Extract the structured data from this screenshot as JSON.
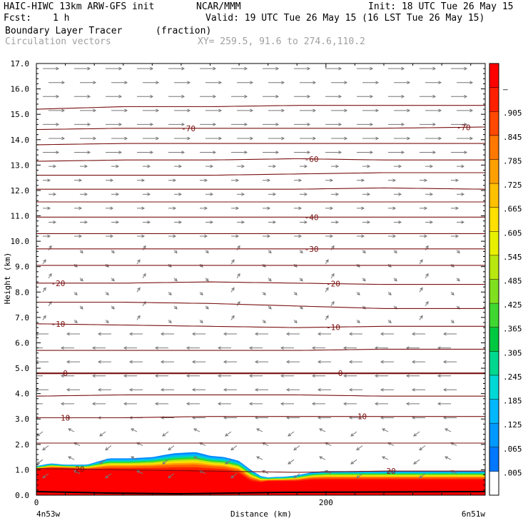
{
  "header": {
    "model": "HAIC-HIWC 13km ARW-GFS init",
    "center": "NCAR/MMM",
    "init": "Init: 18 UTC Tue 26 May 15",
    "fcst_label": "Fcst:",
    "fcst_value": "1 h",
    "valid": "Valid: 19 UTC Tue 26 May 15 (16 LST Tue 26 May 15)",
    "field_name": "Boundary Layer Tracer",
    "field_units": "(fraction)",
    "vector_label": "Circulation vectors",
    "xy_range": "XY= 259.5, 91.6 to 274.6,110.2"
  },
  "chart_data": {
    "type": "heatmap",
    "xlabel": "Distance (km)",
    "ylabel": "Height (km)",
    "xlim": [
      0,
      310
    ],
    "ylim": [
      0,
      17
    ],
    "x_ticks": [
      {
        "value": 0,
        "label": "0"
      },
      {
        "value": 200,
        "label": "200"
      }
    ],
    "x_end_labels": {
      "left": "4n53w",
      "right": "6n51w"
    },
    "y_ticks": [
      "0.0",
      "1.0",
      "2.0",
      "3.0",
      "4.0",
      "5.0",
      "6.0",
      "7.0",
      "8.0",
      "9.0",
      "10.0",
      "11.0",
      "12.0",
      "13.0",
      "14.0",
      "15.0",
      "16.0",
      "17.0"
    ],
    "colorbar": {
      "min": 0.0,
      "max": 1.0,
      "labels": [
        ".005",
        ".065",
        ".125",
        ".185",
        ".245",
        ".305",
        ".365",
        ".425",
        ".485",
        ".545",
        ".605",
        ".665",
        ".725",
        ".785",
        ".845",
        ".905",
        "–"
      ],
      "colors": [
        "#ffffff",
        "#0077ff",
        "#0099ff",
        "#00b8ff",
        "#00d8d8",
        "#00d890",
        "#00c840",
        "#40d830",
        "#80e020",
        "#b8e810",
        "#e8f000",
        "#ffe000",
        "#ffc000",
        "#ffa000",
        "#ff7800",
        "#ff4800",
        "#ff2000",
        "#ff0000"
      ]
    },
    "tracer_profile": {
      "x_km": [
        0,
        10,
        20,
        35,
        50,
        65,
        80,
        95,
        110,
        120,
        130,
        140,
        148,
        155,
        160,
        165,
        170,
        180,
        190,
        200,
        230,
        260,
        290,
        310
      ],
      "top_km": [
        1.15,
        1.25,
        1.2,
        1.2,
        1.45,
        1.45,
        1.5,
        1.65,
        1.7,
        1.55,
        1.5,
        1.35,
        1.0,
        0.75,
        0.7,
        0.72,
        0.72,
        0.78,
        0.9,
        0.95,
        0.95,
        0.95,
        0.95,
        0.95
      ],
      "red_top_km": [
        1.0,
        1.05,
        1.05,
        1.0,
        1.0,
        1.0,
        1.0,
        1.0,
        1.0,
        0.98,
        0.95,
        0.85,
        0.55,
        0.5,
        0.55,
        0.55,
        0.55,
        0.55,
        0.6,
        0.6,
        0.6,
        0.6,
        0.6,
        0.6
      ]
    },
    "isotherms": [
      {
        "label": "-70",
        "y_km": [
          15.2,
          15.3,
          15.3,
          15.35,
          15.35,
          15.35
        ]
      },
      {
        "label": "-70",
        "y_km": [
          14.4,
          14.45,
          14.45,
          14.45,
          14.45,
          14.5
        ],
        "label_x": [
          105,
          295
        ]
      },
      {
        "label": "-70",
        "y_km": [
          13.8,
          13.85,
          13.85,
          13.85,
          13.85,
          13.85
        ]
      },
      {
        "label": "-60",
        "y_km": [
          13.15,
          13.2,
          13.2,
          13.25,
          13.2,
          13.2
        ],
        "label_x": [
          190
        ]
      },
      {
        "label": "-60",
        "y_km": [
          12.6,
          12.6,
          12.6,
          12.65,
          12.7,
          12.7
        ]
      },
      {
        "label": "-50",
        "y_km": [
          12.05,
          12.05,
          12.05,
          12.05,
          12.1,
          12.05
        ]
      },
      {
        "label": "-50",
        "y_km": [
          11.55,
          11.55,
          11.55,
          11.55,
          11.55,
          11.55
        ]
      },
      {
        "label": "-40",
        "y_km": [
          10.95,
          10.95,
          10.95,
          10.95,
          10.95,
          10.95
        ],
        "label_x": [
          190
        ]
      },
      {
        "label": "-40",
        "y_km": [
          10.3,
          10.3,
          10.3,
          10.3,
          10.3,
          10.3
        ]
      },
      {
        "label": "-30",
        "y_km": [
          9.7,
          9.7,
          9.7,
          9.7,
          9.7,
          9.7
        ],
        "label_x": [
          190
        ]
      },
      {
        "label": "-30",
        "y_km": [
          9.05,
          9.05,
          9.05,
          9.05,
          9.05,
          9.05
        ]
      },
      {
        "label": "-20",
        "y_km": [
          8.35,
          8.35,
          8.4,
          8.35,
          8.3,
          8.3
        ],
        "label_x": [
          15,
          205
        ]
      },
      {
        "label": "-20",
        "y_km": [
          7.6,
          7.6,
          7.55,
          7.45,
          7.35,
          7.35
        ]
      },
      {
        "label": "-10",
        "y_km": [
          6.75,
          6.7,
          6.65,
          6.6,
          6.65,
          6.65
        ],
        "label_x": [
          15,
          205
        ]
      },
      {
        "label": "-10",
        "y_km": [
          5.7,
          5.7,
          5.7,
          5.7,
          5.75,
          5.75
        ]
      },
      {
        "label": "0",
        "y_km": [
          4.8,
          4.8,
          4.8,
          4.8,
          4.8,
          4.8
        ],
        "label_x": [
          20,
          210
        ],
        "bold": true
      },
      {
        "label": "0",
        "y_km": [
          3.9,
          3.95,
          3.95,
          3.95,
          3.9,
          3.9
        ]
      },
      {
        "label": "10",
        "y_km": [
          3.05,
          3.05,
          3.1,
          3.1,
          3.1,
          3.1
        ],
        "label_x": [
          20,
          225
        ]
      },
      {
        "label": "10",
        "y_km": [
          2.05,
          2.05,
          2.05,
          2.05,
          2.05,
          2.05
        ]
      },
      {
        "label": "20",
        "y_km": [
          1.05,
          1.0,
          0.95,
          0.9,
          0.95,
          0.95
        ],
        "label_x": [
          30,
          245
        ]
      }
    ],
    "isotherm_x_km": [
      0,
      60,
      120,
      180,
      240,
      310
    ]
  }
}
